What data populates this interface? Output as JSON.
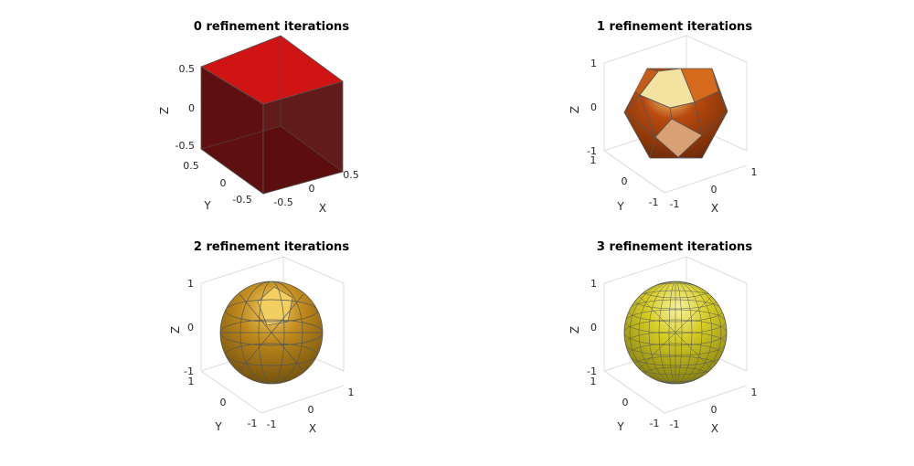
{
  "figure": {
    "background": "#ffffff",
    "edge_color": "#555555"
  },
  "chart_data": [
    {
      "type": "surface-3d",
      "title": "0 refinement iterations",
      "xlabel": "X",
      "ylabel": "Y",
      "zlabel": "Z",
      "x_ticks": [
        "-0.5",
        "0",
        "0.5"
      ],
      "y_ticks": [
        "-0.5",
        "0",
        "0.5"
      ],
      "z_ticks": [
        "0.5",
        "0",
        "-0.5"
      ],
      "xlim": [
        -0.5,
        0.5
      ],
      "ylim": [
        -0.5,
        0.5
      ],
      "zlim": [
        -0.5,
        0.5
      ],
      "shape": "cube",
      "refinement_iterations": 0,
      "face_color": "#cc1111"
    },
    {
      "type": "surface-3d",
      "title": "1 refinement iterations",
      "xlabel": "X",
      "ylabel": "Y",
      "zlabel": "Z",
      "x_ticks": [
        "-1",
        "0",
        "1"
      ],
      "y_ticks": [
        "-1",
        "0",
        "1"
      ],
      "z_ticks": [
        "1",
        "0",
        "-1"
      ],
      "xlim": [
        -1,
        1
      ],
      "ylim": [
        -1,
        1
      ],
      "zlim": [
        -1,
        1
      ],
      "shape": "polyhedron",
      "refinement_iterations": 1,
      "face_color": "#b84a10"
    },
    {
      "type": "surface-3d",
      "title": "2 refinement iterations",
      "xlabel": "X",
      "ylabel": "Y",
      "zlabel": "Z",
      "x_ticks": [
        "-1",
        "0",
        "1"
      ],
      "y_ticks": [
        "-1",
        "0",
        "1"
      ],
      "z_ticks": [
        "1",
        "0",
        "-1"
      ],
      "xlim": [
        -1,
        1
      ],
      "ylim": [
        -1,
        1
      ],
      "zlim": [
        -1,
        1
      ],
      "shape": "sphere",
      "refinement_iterations": 2,
      "face_color": "#c08a1c"
    },
    {
      "type": "surface-3d",
      "title": "3 refinement iterations",
      "xlabel": "X",
      "ylabel": "Y",
      "zlabel": "Z",
      "x_ticks": [
        "-1",
        "0",
        "1"
      ],
      "y_ticks": [
        "-1",
        "0",
        "1"
      ],
      "z_ticks": [
        "1",
        "0",
        "-1"
      ],
      "xlim": [
        -1,
        1
      ],
      "ylim": [
        -1,
        1
      ],
      "zlim": [
        -1,
        1
      ],
      "shape": "sphere",
      "refinement_iterations": 3,
      "face_color": "#d6cc24"
    }
  ]
}
